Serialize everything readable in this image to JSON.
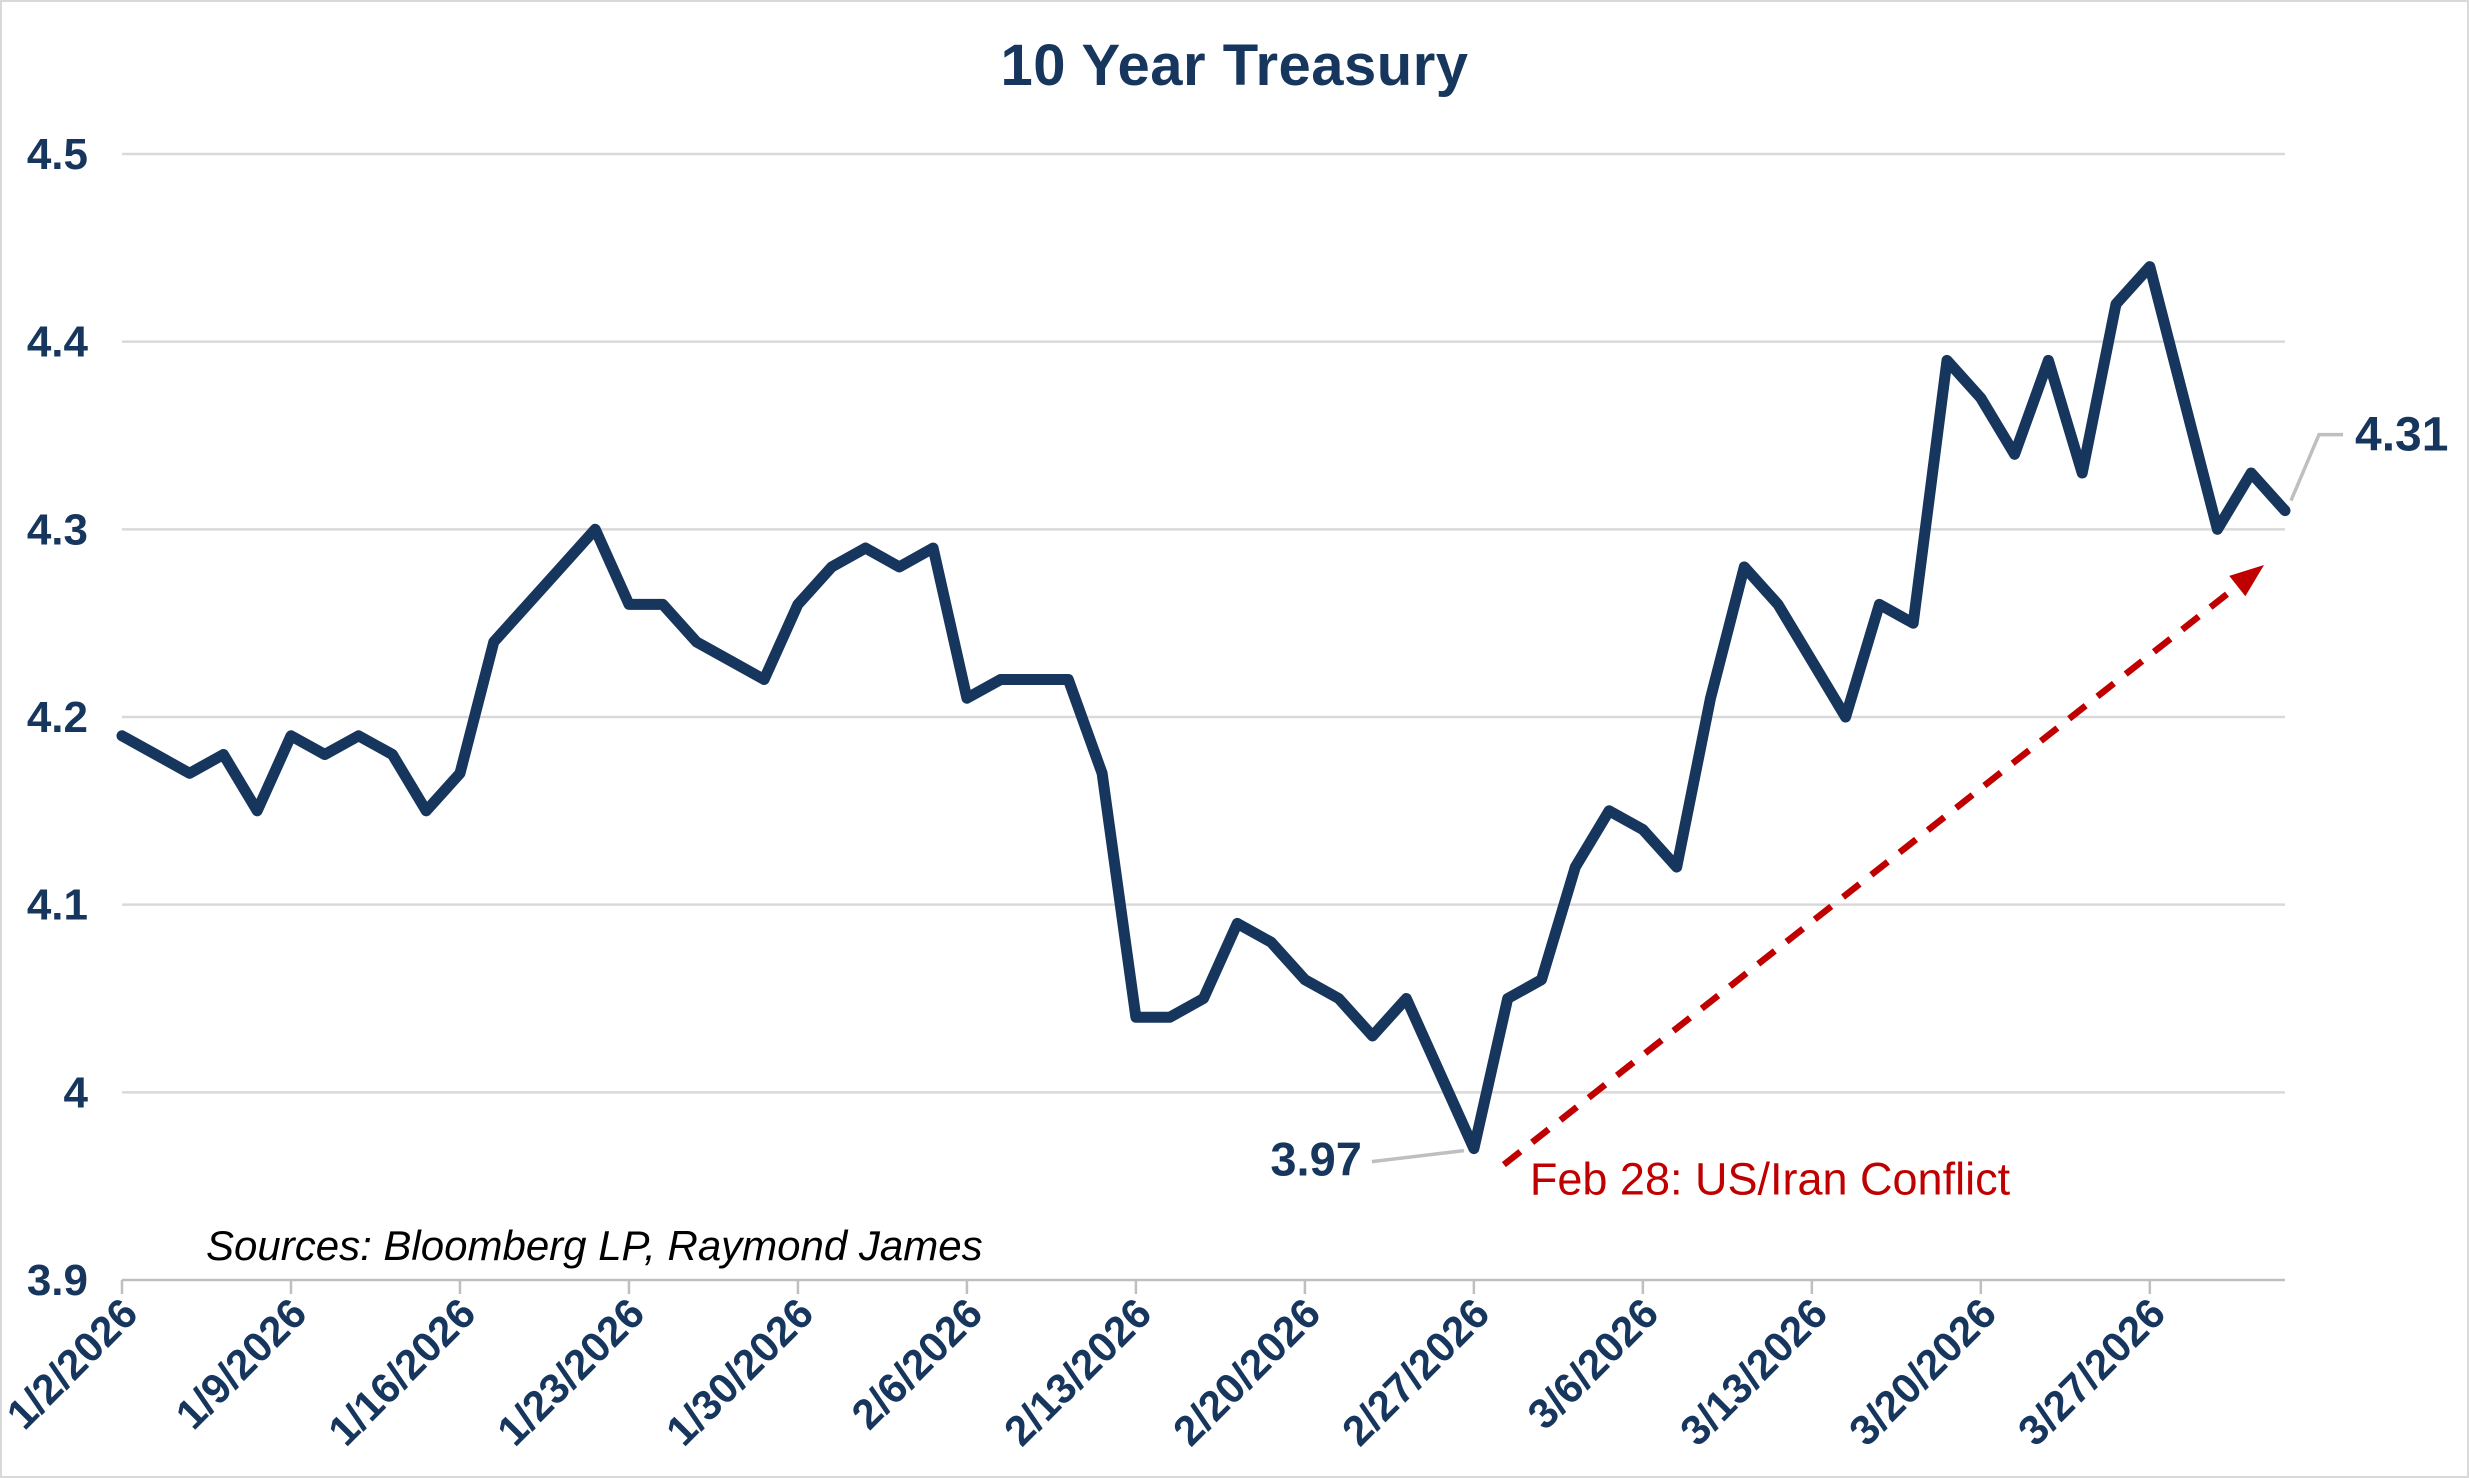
{
  "title": "10 Year Treasury",
  "source_note": "Sources: Bloomberg LP, Raymond James",
  "colors": {
    "navy": "#17365d",
    "red": "#c00000",
    "grid": "#d9d9d9",
    "axis": "#bfbfbf",
    "leader": "#bfbfbf",
    "background": "#ffffff"
  },
  "chart_data": {
    "type": "line",
    "title": "10 Year Treasury",
    "xlabel": "",
    "ylabel": "",
    "ylim": [
      3.9,
      4.5
    ],
    "grid": "horizontal",
    "legend": "none",
    "line_color": "#17365d",
    "x": [
      "1/2/2026",
      "1/5/2026",
      "1/6/2026",
      "1/7/2026",
      "1/8/2026",
      "1/9/2026",
      "1/12/2026",
      "1/13/2026",
      "1/14/2026",
      "1/15/2026",
      "1/16/2026",
      "1/19/2026",
      "1/20/2026",
      "1/21/2026",
      "1/22/2026",
      "1/23/2026",
      "1/26/2026",
      "1/27/2026",
      "1/28/2026",
      "1/29/2026",
      "1/30/2026",
      "2/2/2026",
      "2/3/2026",
      "2/4/2026",
      "2/5/2026",
      "2/6/2026",
      "2/9/2026",
      "2/10/2026",
      "2/11/2026",
      "2/12/2026",
      "2/13/2026",
      "2/16/2026",
      "2/17/2026",
      "2/18/2026",
      "2/19/2026",
      "2/20/2026",
      "2/23/2026",
      "2/24/2026",
      "2/25/2026",
      "2/26/2026",
      "2/27/2026",
      "3/2/2026",
      "3/3/2026",
      "3/4/2026",
      "3/5/2026",
      "3/6/2026",
      "3/9/2026",
      "3/10/2026",
      "3/11/2026",
      "3/12/2026",
      "3/13/2026",
      "3/16/2026",
      "3/17/2026",
      "3/18/2026",
      "3/19/2026",
      "3/20/2026",
      "3/23/2026",
      "3/24/2026",
      "3/25/2026",
      "3/26/2026",
      "3/27/2026",
      "3/30/2026",
      "3/31/2026",
      "4/1/2026",
      "4/2/2026"
    ],
    "values": [
      4.19,
      4.18,
      4.17,
      4.18,
      4.15,
      4.19,
      4.18,
      4.19,
      4.18,
      4.15,
      4.17,
      4.24,
      4.26,
      4.28,
      4.3,
      4.26,
      4.26,
      4.24,
      4.23,
      4.22,
      4.26,
      4.28,
      4.29,
      4.28,
      4.29,
      4.21,
      4.22,
      4.22,
      4.22,
      4.17,
      4.04,
      4.04,
      4.05,
      4.09,
      4.08,
      4.06,
      4.05,
      4.03,
      4.05,
      4.01,
      3.97,
      4.05,
      4.06,
      4.12,
      4.15,
      4.14,
      4.12,
      4.21,
      4.28,
      4.26,
      4.23,
      4.2,
      4.26,
      4.25,
      4.39,
      4.37,
      4.34,
      4.39,
      4.33,
      4.42,
      4.44,
      4.37,
      4.3,
      4.33,
      4.31
    ],
    "x_tick_indices": [
      0,
      5,
      10,
      15,
      20,
      25,
      30,
      35,
      40,
      45,
      50,
      55,
      60
    ],
    "x_tick_labels": [
      "1/2/2026",
      "1/9/2026",
      "1/16/2026",
      "1/23/2026",
      "1/30/2026",
      "2/6/2026",
      "2/13/2026",
      "2/20/2026",
      "2/27/2026",
      "3/6/2026",
      "3/13/2026",
      "3/20/2026",
      "3/27/2026"
    ],
    "y_ticks": [
      4.5,
      4.4,
      4.3,
      4.2,
      4.1,
      4.0,
      3.9
    ],
    "y_tick_labels": [
      "4.5",
      "4.4",
      "4.3",
      "4.2",
      "4.1",
      "4",
      "3.9"
    ],
    "annotations": {
      "min_point": {
        "text": "3.97",
        "index": 40
      },
      "last_point": {
        "text": "4.31",
        "index": 64
      },
      "event": {
        "text": "Feb 28: US/Iran Conflict",
        "color": "#c00000",
        "style": "dashed-arrow",
        "from_index": 40,
        "points_to": "late March rise"
      }
    }
  }
}
